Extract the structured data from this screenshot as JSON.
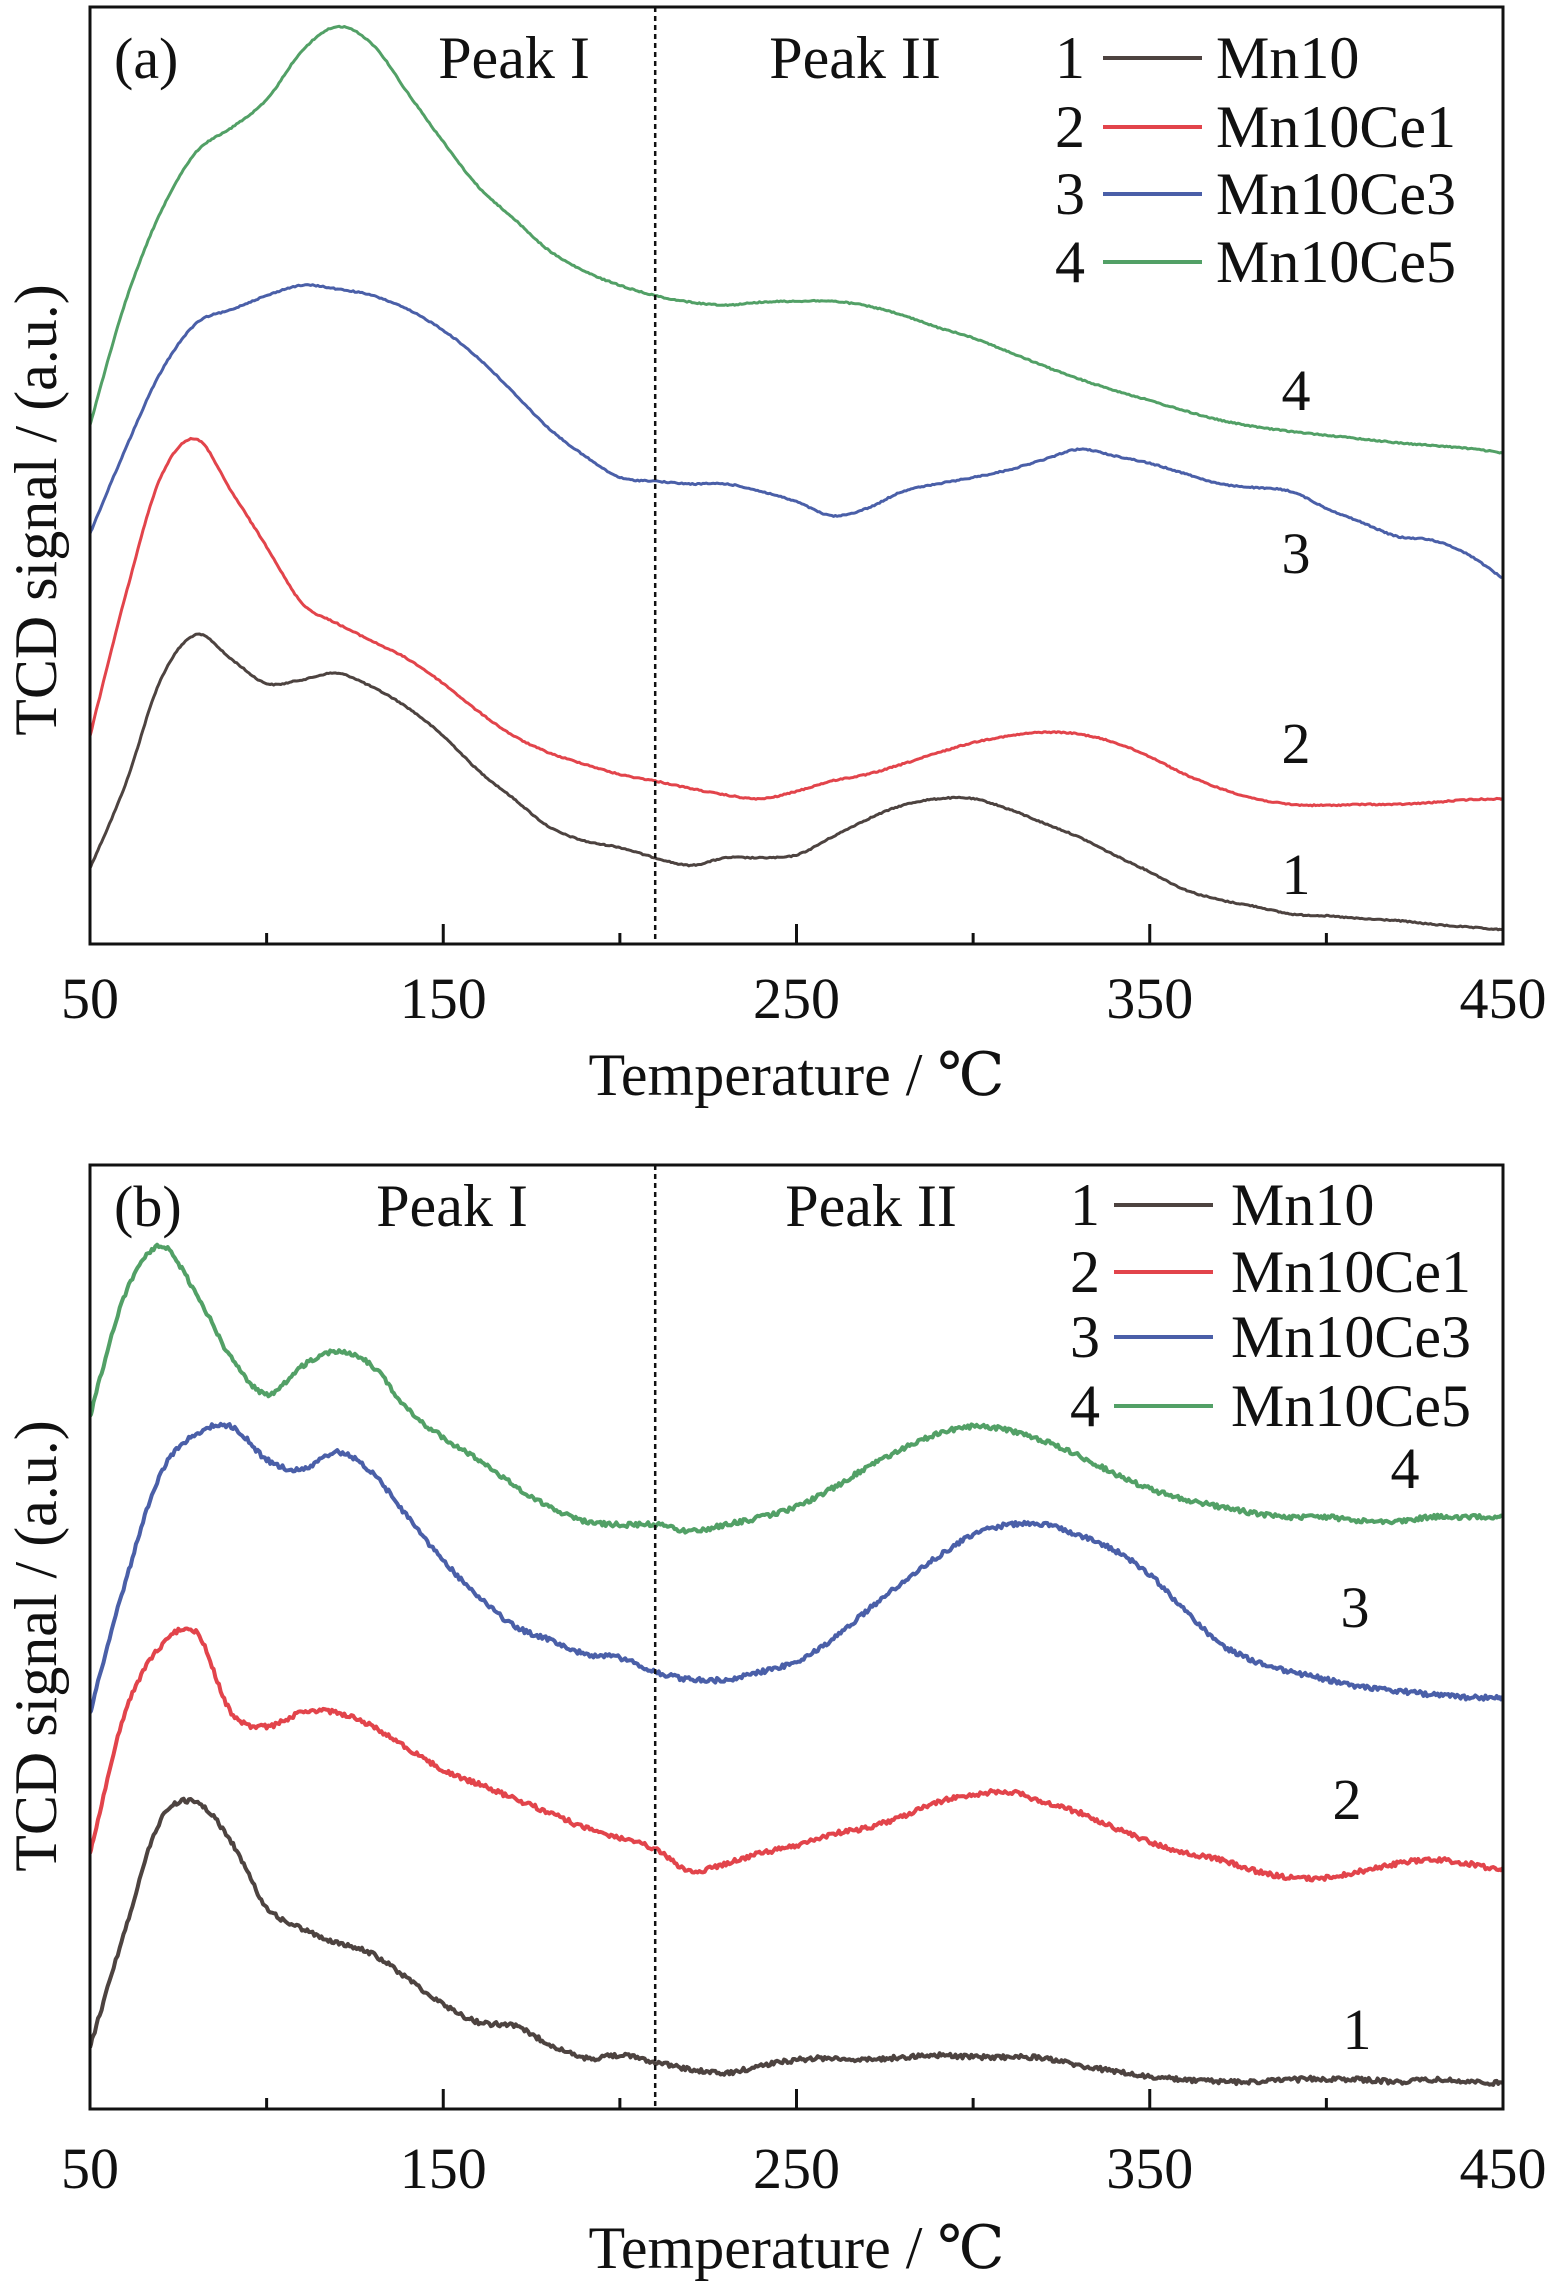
{
  "chart_data": [
    {
      "type": "line",
      "panel_label": "(a)",
      "xlabel": "Temperature / ℃",
      "ylabel": "TCD signal / (a.u.)",
      "xlim": [
        50,
        450
      ],
      "ylim": [
        0,
        100
      ],
      "xticks": [
        50,
        150,
        250,
        350,
        450
      ],
      "xticks_minor": [
        100,
        200,
        300,
        400
      ],
      "divider_x": 210,
      "annotations": [
        "Peak I",
        "Peak II"
      ],
      "grid": false,
      "legend_placement": "top-right",
      "x": [
        50,
        60,
        70,
        80,
        90,
        100,
        110,
        120,
        130,
        140,
        150,
        160,
        170,
        180,
        190,
        200,
        210,
        220,
        230,
        240,
        250,
        260,
        270,
        280,
        290,
        300,
        310,
        320,
        330,
        340,
        350,
        360,
        370,
        380,
        390,
        400,
        410,
        420,
        430,
        440,
        450
      ],
      "series": [
        {
          "number": "1",
          "name": "Mn10",
          "color": "#4d4340",
          "values": [
            8.1,
            17.0,
            28.2,
            33.0,
            30.4,
            27.8,
            28.2,
            28.9,
            27.4,
            25.2,
            22.2,
            18.5,
            15.5,
            12.5,
            11.0,
            10.3,
            9.2,
            8.4,
            9.2,
            9.2,
            9.5,
            11.4,
            13.3,
            14.8,
            15.5,
            15.5,
            14.4,
            12.9,
            11.4,
            9.5,
            7.7,
            5.8,
            4.7,
            4.0,
            3.2,
            3.0,
            2.7,
            2.5,
            2.1,
            1.8,
            1.5
          ]
        },
        {
          "number": "2",
          "name": "Mn10Ce1",
          "color": "#e2444b",
          "values": [
            22.2,
            37.1,
            49.8,
            53.9,
            48.3,
            42.4,
            36.4,
            34.2,
            32.3,
            30.4,
            27.8,
            24.8,
            22.2,
            20.4,
            19.2,
            18.1,
            17.4,
            16.6,
            15.9,
            15.5,
            16.3,
            17.4,
            18.1,
            19.2,
            20.4,
            21.5,
            22.2,
            22.6,
            22.4,
            21.5,
            20.0,
            18.1,
            16.6,
            15.5,
            14.9,
            14.8,
            14.9,
            14.9,
            15.1,
            15.4,
            15.5
          ]
        },
        {
          "number": "3",
          "name": "Mn10Ce3",
          "color": "#4a5fa8",
          "values": [
            43.8,
            52.8,
            61.0,
            66.2,
            67.7,
            69.2,
            70.3,
            69.9,
            69.2,
            67.7,
            65.5,
            62.5,
            58.8,
            55.0,
            52.1,
            49.8,
            49.4,
            49.1,
            49.1,
            48.3,
            47.2,
            45.7,
            46.5,
            48.3,
            49.1,
            49.8,
            50.6,
            51.7,
            52.8,
            52.1,
            51.3,
            50.2,
            49.1,
            48.7,
            48.3,
            46.5,
            45.0,
            43.5,
            43.1,
            41.6,
            39.0
          ]
        },
        {
          "number": "4",
          "name": "Mn10Ce5",
          "color": "#52a066",
          "values": [
            55.4,
            68.5,
            78.1,
            84.5,
            87.1,
            90.1,
            95.3,
            97.9,
            96.0,
            90.8,
            85.6,
            80.8,
            77.4,
            74.0,
            71.8,
            70.3,
            69.2,
            68.5,
            68.2,
            68.5,
            68.6,
            68.6,
            68.1,
            67.1,
            65.8,
            64.7,
            63.2,
            61.7,
            60.3,
            59.1,
            58.0,
            56.9,
            55.9,
            55.2,
            54.7,
            54.3,
            53.9,
            53.5,
            53.2,
            52.9,
            52.4
          ]
        }
      ]
    },
    {
      "type": "line",
      "panel_label": "(b)",
      "xlabel": "Temperature / ℃",
      "ylabel": "TCD signal / (a.u.)",
      "xlim": [
        50,
        450
      ],
      "ylim": [
        0,
        100
      ],
      "xticks": [
        50,
        150,
        250,
        350,
        450
      ],
      "xticks_minor": [
        100,
        200,
        300,
        400
      ],
      "divider_x": 210,
      "annotations": [
        "Peak I",
        "Peak II"
      ],
      "grid": false,
      "legend_placement": "top-right",
      "x": [
        50,
        60,
        70,
        80,
        90,
        100,
        110,
        120,
        130,
        140,
        150,
        160,
        170,
        180,
        190,
        200,
        210,
        220,
        230,
        240,
        250,
        260,
        270,
        280,
        290,
        300,
        310,
        320,
        330,
        340,
        350,
        360,
        370,
        380,
        390,
        400,
        410,
        420,
        430,
        440,
        450
      ],
      "series": [
        {
          "number": "1",
          "name": "Mn10",
          "color": "#4d4340",
          "values": [
            6.5,
            19.1,
            30.6,
            32.5,
            28.3,
            21.4,
            19.1,
            17.6,
            16.4,
            13.8,
            11.1,
            9.2,
            8.8,
            6.9,
            5.4,
            5.7,
            5.0,
            4.2,
            3.8,
            4.6,
            5.2,
            5.4,
            5.2,
            5.5,
            5.7,
            5.5,
            5.5,
            5.4,
            4.6,
            4.0,
            3.4,
            3.1,
            2.9,
            2.9,
            3.1,
            3.2,
            3.1,
            2.9,
            3.1,
            2.9,
            2.7
          ]
        },
        {
          "number": "2",
          "name": "Mn10Ce1",
          "color": "#e2444b",
          "values": [
            27.1,
            42.0,
            49.0,
            50.5,
            42.0,
            40.5,
            42.0,
            42.0,
            40.5,
            38.2,
            35.9,
            34.4,
            32.9,
            31.4,
            29.8,
            28.7,
            27.5,
            25.2,
            26.0,
            27.1,
            27.9,
            29.1,
            29.8,
            31.0,
            32.5,
            33.3,
            33.6,
            32.5,
            31.4,
            29.8,
            28.3,
            27.1,
            26.4,
            25.2,
            24.5,
            24.5,
            25.2,
            26.0,
            26.4,
            26.0,
            25.2
          ]
        },
        {
          "number": "3",
          "name": "Mn10Ce3",
          "color": "#4a5fa8",
          "values": [
            42.0,
            55.8,
            67.3,
            71.5,
            72.3,
            68.8,
            67.7,
            69.6,
            67.3,
            62.7,
            58.1,
            54.3,
            51.2,
            49.7,
            48.2,
            47.8,
            46.3,
            45.5,
            45.5,
            46.3,
            47.4,
            49.7,
            52.8,
            55.8,
            58.5,
            60.8,
            61.9,
            61.9,
            60.8,
            59.2,
            56.6,
            52.8,
            49.3,
            47.4,
            46.3,
            45.5,
            44.7,
            44.3,
            43.9,
            43.6,
            43.6
          ]
        },
        {
          "number": "4",
          "name": "Mn10Ce5",
          "color": "#52a066",
          "values": [
            73.4,
            86.4,
            91.4,
            86.4,
            79.5,
            75.7,
            78.7,
            80.3,
            78.7,
            74.1,
            71.1,
            68.8,
            66.1,
            63.8,
            62.3,
            61.9,
            61.9,
            61.2,
            61.9,
            62.7,
            63.8,
            65.7,
            68.0,
            69.9,
            71.5,
            72.3,
            71.9,
            70.8,
            69.2,
            67.3,
            65.7,
            64.6,
            63.8,
            63.1,
            62.7,
            62.7,
            62.3,
            62.3,
            62.7,
            62.7,
            62.8
          ]
        }
      ]
    }
  ]
}
